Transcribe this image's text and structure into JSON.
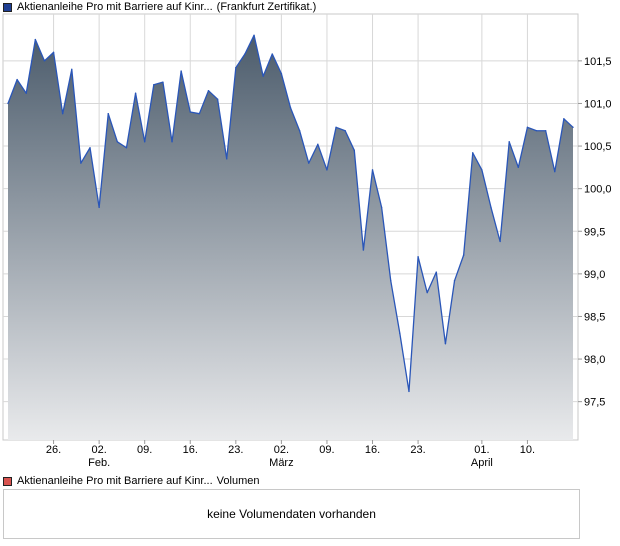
{
  "legend": {
    "price": {
      "label": "Aktienanleihe Pro mit Barriere auf Kinr...",
      "suffix": "(Frankfurt Zertifikat.)",
      "color": "#1f3f93"
    },
    "volume": {
      "label": "Aktienanleihe Pro mit Barriere auf Kinr...",
      "suffix": "Volumen",
      "color": "#d9534f"
    }
  },
  "volume_panel": {
    "message": "keine Volumendaten vorhanden"
  },
  "colors": {
    "line": "#2a56b8",
    "fill_top": "#4c5c6c",
    "fill_bottom": "#e9eaec",
    "grid": "#d8d8d8",
    "frame": "#c8c8c8"
  },
  "chart_data": {
    "type": "area",
    "title": "",
    "xlabel": "",
    "ylabel": "",
    "ylim": [
      97.05,
      102.05
    ],
    "yticks": [
      97.5,
      98.0,
      98.5,
      99.0,
      99.5,
      100.0,
      100.5,
      101.0,
      101.5
    ],
    "ytick_labels": [
      "97,5",
      "98,0",
      "98,5",
      "99,0",
      "99,5",
      "100,0",
      "100,5",
      "101,0",
      "101,5"
    ],
    "x_count": 63,
    "xticks": [
      {
        "index": 5,
        "label": "26.",
        "sublabel": ""
      },
      {
        "index": 10,
        "label": "02.",
        "sublabel": "Feb."
      },
      {
        "index": 15,
        "label": "09.",
        "sublabel": ""
      },
      {
        "index": 20,
        "label": "16.",
        "sublabel": ""
      },
      {
        "index": 25,
        "label": "23.",
        "sublabel": ""
      },
      {
        "index": 30,
        "label": "02.",
        "sublabel": "März"
      },
      {
        "index": 35,
        "label": "09.",
        "sublabel": ""
      },
      {
        "index": 40,
        "label": "16.",
        "sublabel": ""
      },
      {
        "index": 45,
        "label": "23.",
        "sublabel": ""
      },
      {
        "index": 52,
        "label": "01.",
        "sublabel": "April"
      },
      {
        "index": 57,
        "label": "10.",
        "sublabel": ""
      }
    ],
    "series": [
      {
        "name": "Aktienanleihe Pro mit Barriere auf Kinr... (Frankfurt Zertifikat.)",
        "values": [
          101.0,
          101.28,
          101.12,
          101.75,
          101.5,
          101.6,
          100.88,
          101.4,
          100.3,
          100.48,
          99.78,
          100.88,
          100.55,
          100.48,
          101.12,
          100.55,
          101.22,
          101.25,
          100.55,
          101.38,
          100.9,
          100.88,
          101.15,
          101.05,
          100.35,
          101.42,
          101.58,
          101.8,
          101.32,
          101.58,
          101.35,
          100.95,
          100.68,
          100.3,
          100.52,
          100.22,
          100.72,
          100.68,
          100.45,
          99.28,
          100.22,
          99.78,
          98.92,
          98.3,
          97.62,
          99.2,
          98.78,
          99.02,
          98.18,
          98.92,
          99.22,
          100.42,
          100.22,
          99.78,
          99.38,
          100.55,
          100.25,
          100.72,
          100.68,
          100.68,
          100.2,
          100.82,
          100.72
        ]
      }
    ]
  }
}
